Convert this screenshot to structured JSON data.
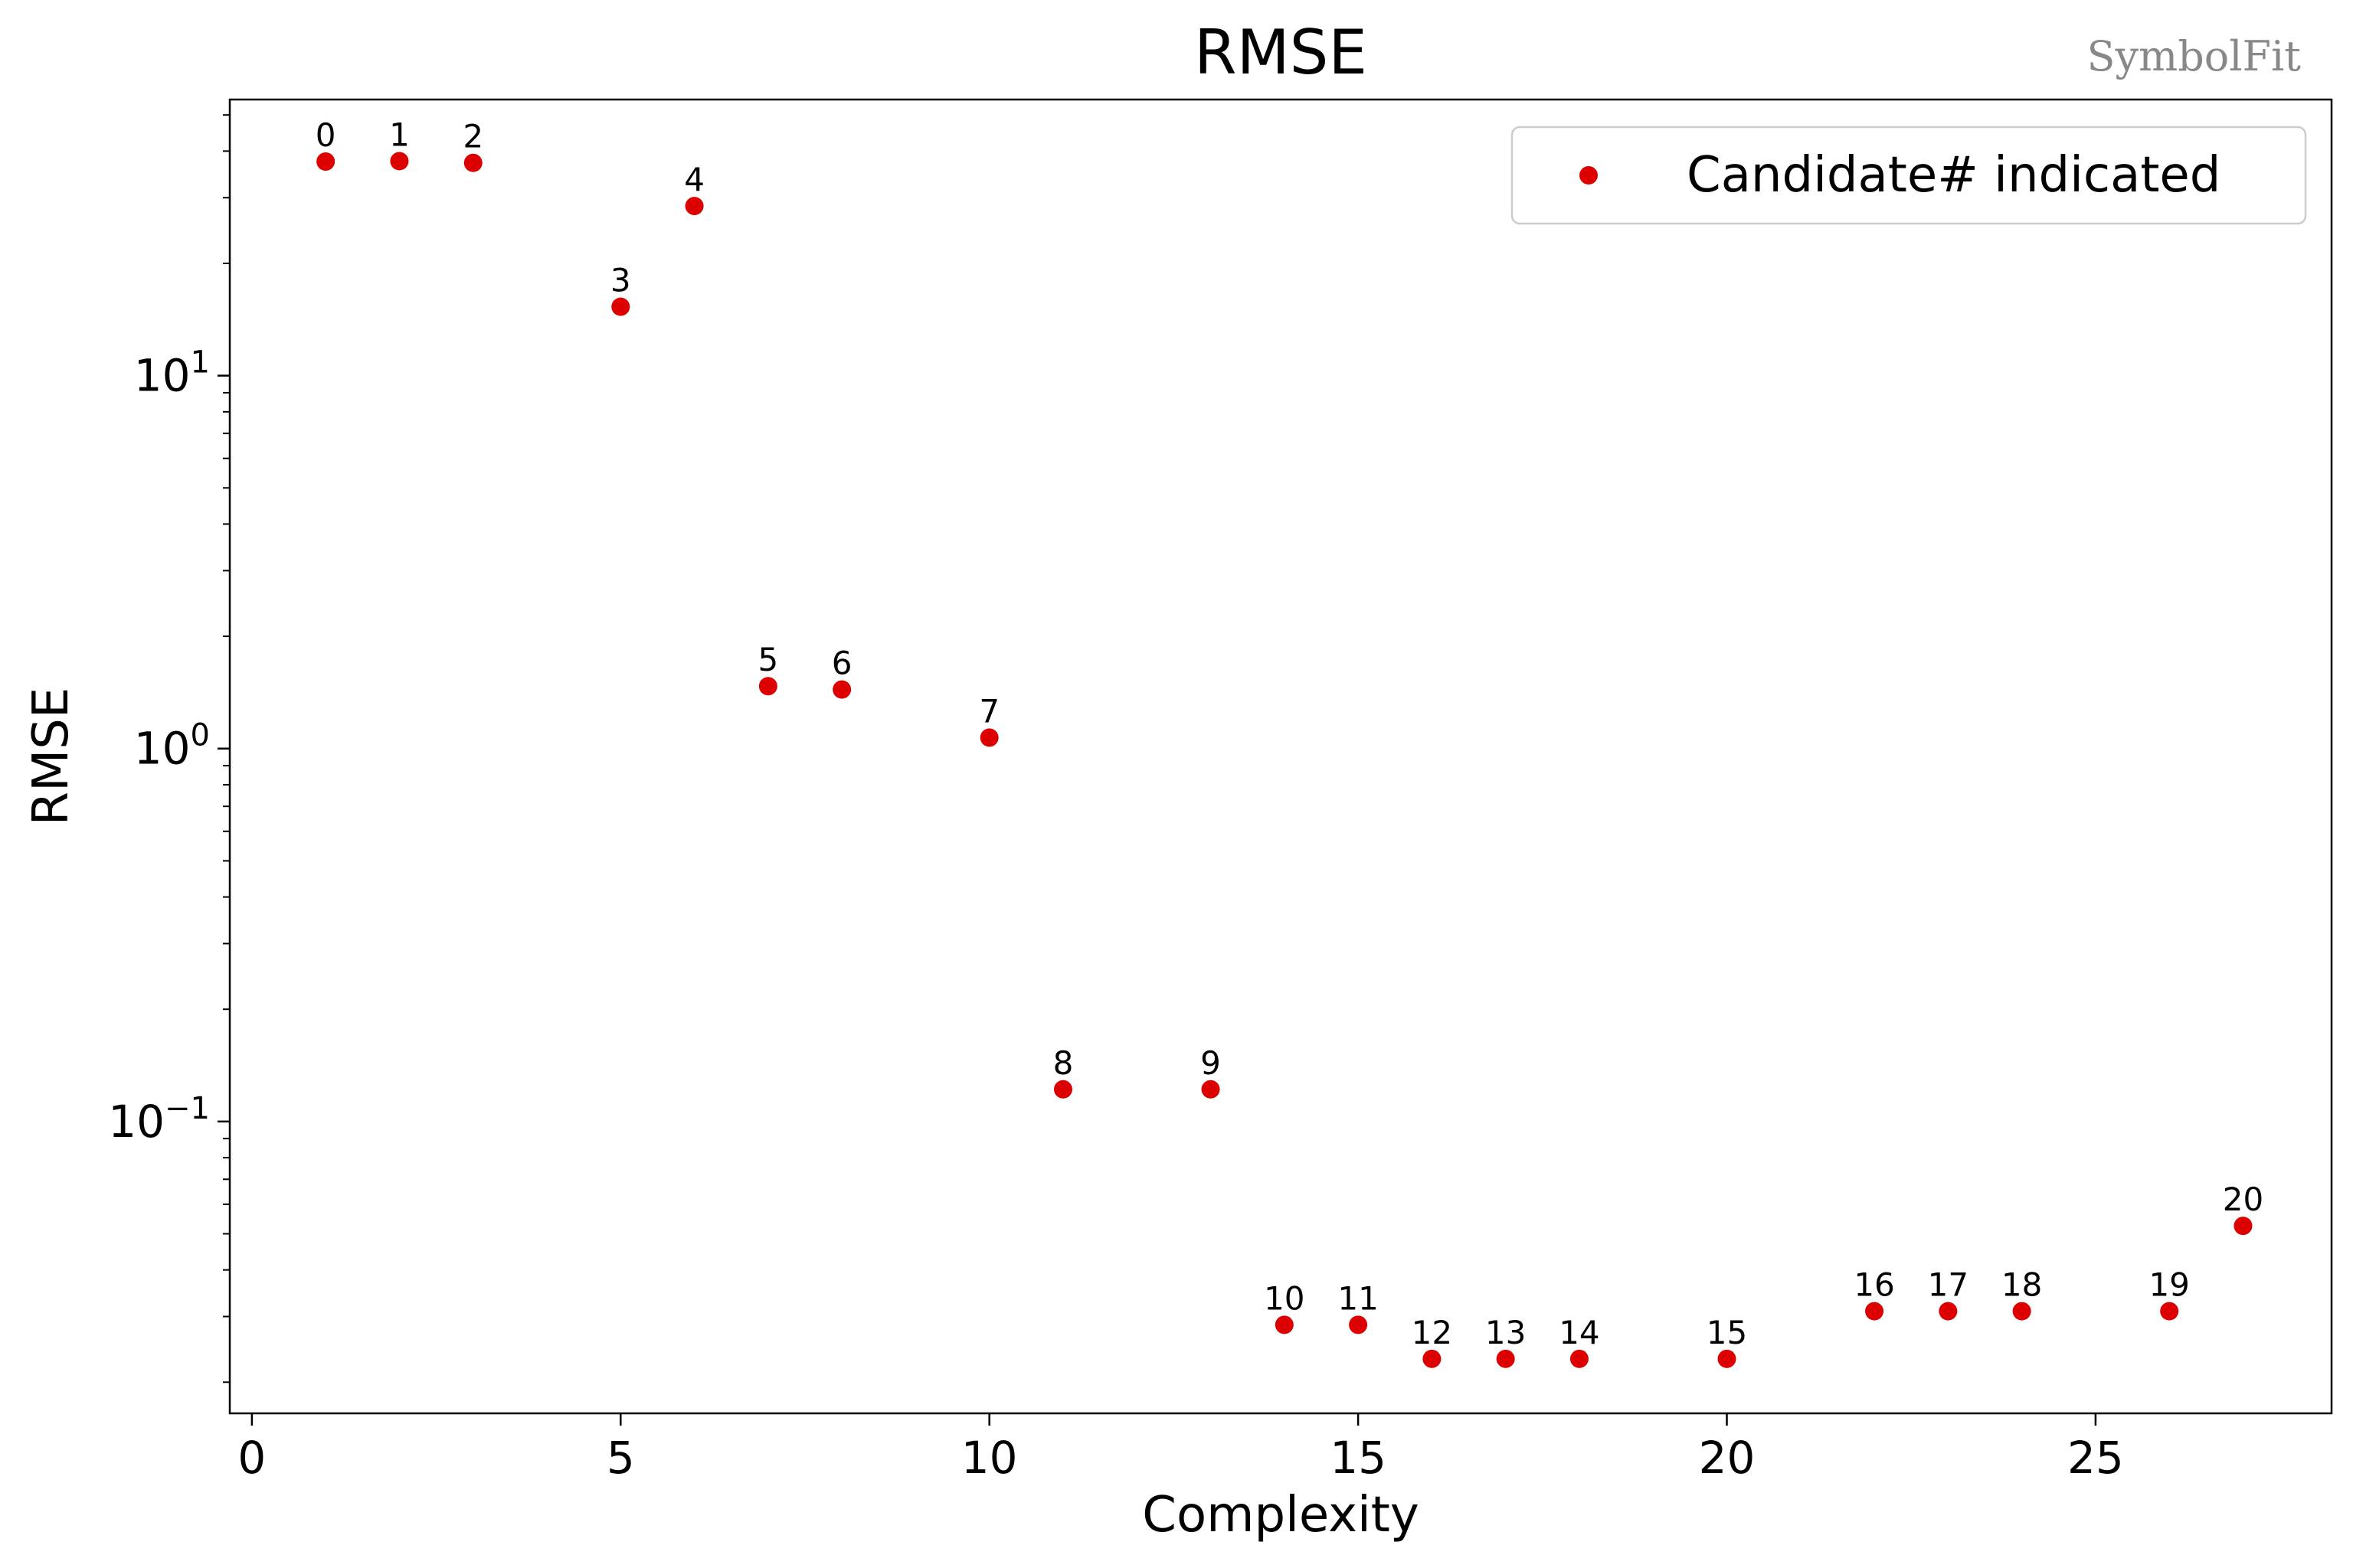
{
  "chart_data": {
    "type": "scatter",
    "title": "RMSE",
    "xlabel": "Complexity",
    "ylabel": "RMSE",
    "yscale": "log",
    "xlim": [
      -0.3,
      28.2
    ],
    "ylim": [
      0.0165,
      55
    ],
    "grid": false,
    "legend_position": "top-right",
    "x_ticks": [
      {
        "value": 0,
        "label": "0"
      },
      {
        "value": 5,
        "label": "5"
      },
      {
        "value": 10,
        "label": "10"
      },
      {
        "value": 15,
        "label": "15"
      },
      {
        "value": 20,
        "label": "20"
      },
      {
        "value": 25,
        "label": "25"
      }
    ],
    "y_ticks": [
      {
        "value": 0.1,
        "base": "10",
        "exp": "−1"
      },
      {
        "value": 1,
        "base": "10",
        "exp": "0"
      },
      {
        "value": 10,
        "base": "10",
        "exp": "1"
      }
    ],
    "series": [
      {
        "name": "Candidate# indicated",
        "color": "#dd0000",
        "points": [
          {
            "x": 1,
            "y": 37.5,
            "label": "0"
          },
          {
            "x": 2,
            "y": 37.6,
            "label": "1"
          },
          {
            "x": 3,
            "y": 37.2,
            "label": "2"
          },
          {
            "x": 5,
            "y": 15.3,
            "label": "3"
          },
          {
            "x": 6,
            "y": 28.5,
            "label": "4"
          },
          {
            "x": 7,
            "y": 1.47,
            "label": "5"
          },
          {
            "x": 8,
            "y": 1.44,
            "label": "6"
          },
          {
            "x": 10,
            "y": 1.07,
            "label": "7"
          },
          {
            "x": 11,
            "y": 0.122,
            "label": "8"
          },
          {
            "x": 13,
            "y": 0.122,
            "label": "9"
          },
          {
            "x": 14,
            "y": 0.0285,
            "label": "10"
          },
          {
            "x": 15,
            "y": 0.0285,
            "label": "11"
          },
          {
            "x": 16,
            "y": 0.0231,
            "label": "12"
          },
          {
            "x": 17,
            "y": 0.0231,
            "label": "13"
          },
          {
            "x": 18,
            "y": 0.0231,
            "label": "14"
          },
          {
            "x": 20,
            "y": 0.0231,
            "label": "15"
          },
          {
            "x": 22,
            "y": 0.031,
            "label": "16"
          },
          {
            "x": 23,
            "y": 0.031,
            "label": "17"
          },
          {
            "x": 24,
            "y": 0.031,
            "label": "18"
          },
          {
            "x": 26,
            "y": 0.031,
            "label": "19"
          },
          {
            "x": 27,
            "y": 0.0525,
            "label": "20"
          }
        ]
      }
    ]
  },
  "watermark": "SymbolFit"
}
